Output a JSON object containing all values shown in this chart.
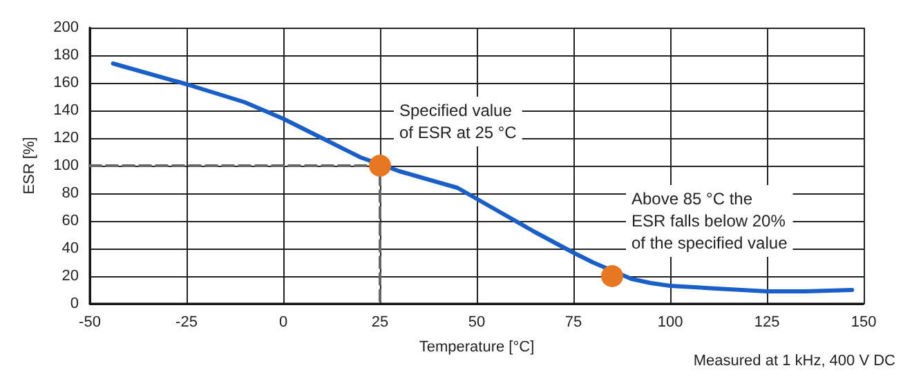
{
  "chart_data": {
    "type": "line",
    "xlabel": "Temperature [°C]",
    "ylabel": "ESR [%]",
    "xlim": [
      -50,
      150
    ],
    "xticks": [
      -50,
      -25,
      0,
      25,
      50,
      75,
      100,
      125,
      150
    ],
    "ylim": [
      0,
      200
    ],
    "yticks": [
      0,
      20,
      40,
      60,
      80,
      100,
      120,
      140,
      160,
      180,
      200
    ],
    "grid": true,
    "series": [
      {
        "color": "#1a5fc8",
        "marker": "none",
        "line_style": "solid",
        "x": [
          -44,
          -25,
          -10,
          0,
          10,
          20,
          30,
          35,
          45,
          55,
          65,
          75,
          80,
          90,
          95,
          100,
          112,
          125,
          135,
          147
        ],
        "values": [
          174,
          159,
          146,
          134,
          120,
          106,
          96,
          92,
          84,
          68,
          52,
          37,
          30,
          18,
          15,
          13,
          11,
          9,
          9,
          10
        ]
      },
      {
        "type": "line",
        "color": "#666666",
        "marker": "none",
        "line_style": "dashed",
        "x": [
          -50,
          25,
          25
        ],
        "values": [
          100,
          100,
          0
        ]
      },
      {
        "type": "scatter",
        "color": "#e87722",
        "marker": "circle",
        "x": [
          25,
          85
        ],
        "values": [
          100,
          20
        ]
      }
    ],
    "annotations": [
      {
        "text": "Specified value\nof ESR at 25 °C",
        "x": 25,
        "y": 100
      },
      {
        "text": "Above 85 °C the\nESR falls below 20%\nof the specified value",
        "x": 85,
        "y": 20
      },
      "Measured at 1 kHz, 400 V DC"
    ]
  }
}
